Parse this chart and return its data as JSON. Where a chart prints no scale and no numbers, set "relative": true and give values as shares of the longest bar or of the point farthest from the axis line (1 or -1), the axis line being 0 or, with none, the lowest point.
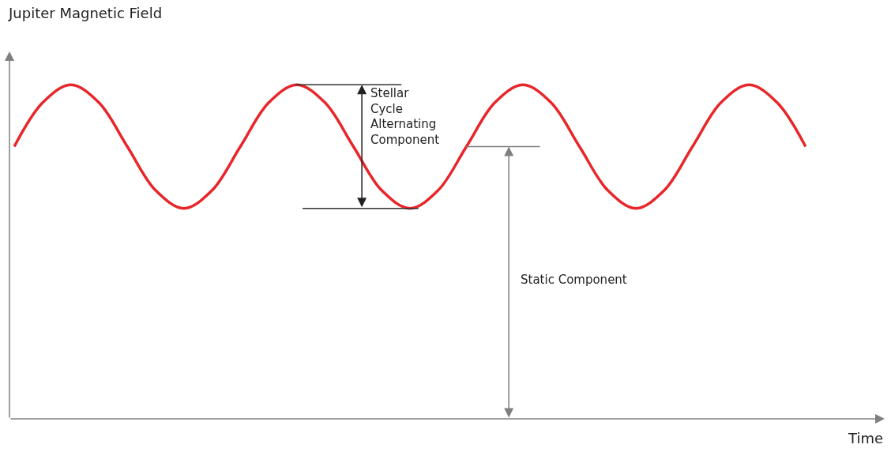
{
  "chart_data": {
    "type": "line",
    "relative": true,
    "xlabel": "Time",
    "ylabel": "Jupiter Magnetic Field",
    "categories": [
      null,
      null,
      null,
      null,
      null,
      null,
      null,
      null,
      null,
      null,
      null,
      null,
      null,
      null,
      null,
      null,
      null,
      null,
      null,
      null,
      null,
      null,
      null,
      null,
      null,
      null,
      null,
      null,
      null
    ],
    "series": [
      {
        "color": "#e8262a",
        "values": [
          0.815,
          0.946,
          1,
          0.946,
          0.815,
          0.684,
          0.63,
          0.684,
          0.815,
          0.946,
          1,
          0.946,
          0.815,
          0.684,
          0.63,
          0.684,
          0.815,
          0.946,
          1,
          0.946,
          0.815,
          0.684,
          0.63,
          0.684,
          0.815,
          0.946,
          1,
          0.946,
          0.815
        ]
      }
    ],
    "annotations": [
      "Stellar\nCycle\nAlternating\nComponent",
      "Static Component"
    ],
    "ref_lines": [
      {
        "axis": "y",
        "value": 1,
        "color": "#333333"
      },
      {
        "axis": "y",
        "value": 0.63,
        "color": "#333333"
      },
      {
        "axis": "y",
        "value": 0.815,
        "color": "#7f7f7f"
      }
    ],
    "marker": "none",
    "line_style": "solid"
  }
}
